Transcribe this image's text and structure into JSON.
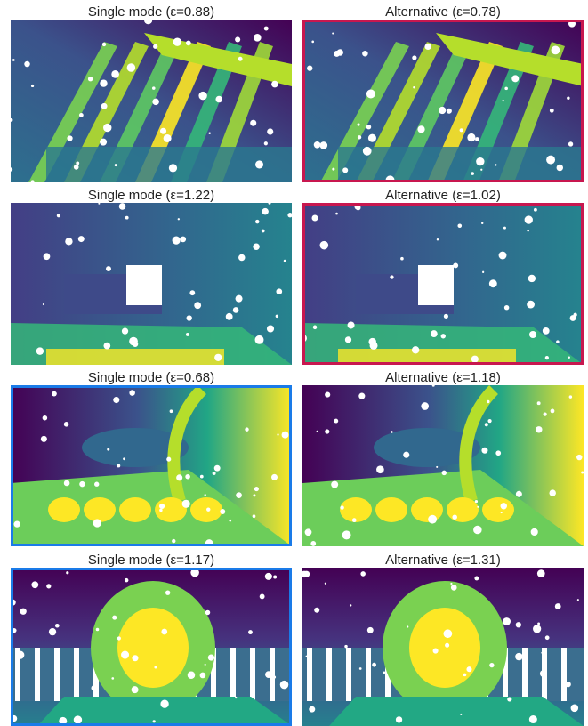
{
  "panels": [
    {
      "title": "Single mode (ε=0.88)"
    },
    {
      "title": "Alternative (ε=0.78)"
    },
    {
      "title": "Single mode (ε=1.22)"
    },
    {
      "title": "Alternative (ε=1.02)"
    },
    {
      "title": "Single mode (ε=0.68)"
    },
    {
      "title": "Alternative (ε=1.18)"
    },
    {
      "title": "Single mode (ε=1.17)"
    },
    {
      "title": "Alternative (ε=1.31)"
    }
  ]
}
